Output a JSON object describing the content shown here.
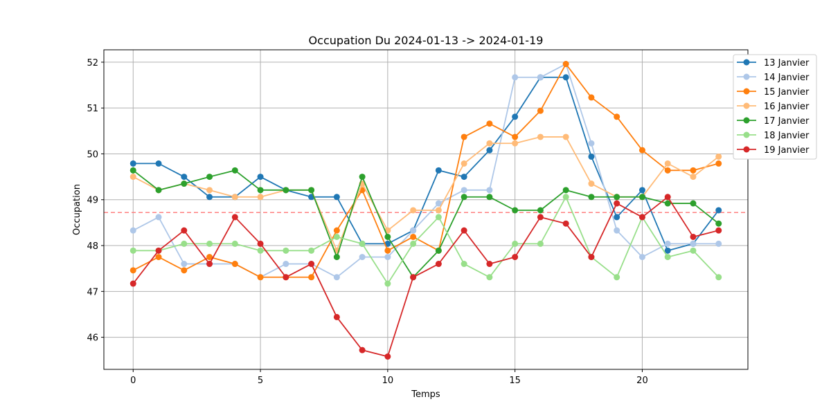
{
  "chart_data": {
    "type": "line",
    "title": "Occupation Du 2024-01-13 -> 2024-01-19",
    "xlabel": "Temps",
    "ylabel": "Occupation",
    "xlim": [
      -1.15,
      24.15
    ],
    "ylim": [
      45.3,
      52.27
    ],
    "x_ticks": [
      0,
      5,
      10,
      15,
      20
    ],
    "y_ticks": [
      46,
      47,
      48,
      49,
      50,
      51,
      52
    ],
    "grid": true,
    "legend_position": "upper right, outside",
    "x": [
      0,
      1,
      2,
      3,
      4,
      5,
      6,
      7,
      8,
      9,
      10,
      11,
      12,
      13,
      14,
      15,
      16,
      17,
      18,
      19,
      20,
      21,
      22,
      23
    ],
    "reference_line": {
      "y": 48.72,
      "color": "#ff7f7f",
      "style": "dashed"
    },
    "series": [
      {
        "name": "13 Janvier",
        "color": "#1f77b4",
        "values": [
          49.79,
          49.79,
          49.5,
          49.06,
          49.06,
          49.5,
          49.21,
          49.06,
          49.06,
          48.04,
          48.04,
          48.33,
          49.64,
          49.5,
          50.08,
          50.81,
          51.67,
          51.67,
          49.94,
          48.62,
          49.21,
          47.89,
          48.04,
          48.77
        ]
      },
      {
        "name": "14 Janvier",
        "color": "#aec7e8",
        "values": [
          48.33,
          48.62,
          47.6,
          47.6,
          47.6,
          47.31,
          47.6,
          47.6,
          47.31,
          47.75,
          47.75,
          48.33,
          48.92,
          49.21,
          49.21,
          51.67,
          51.67,
          51.96,
          50.23,
          48.33,
          47.75,
          48.04,
          48.04,
          48.04
        ]
      },
      {
        "name": "15 Janvier",
        "color": "#ff7f0e",
        "values": [
          47.46,
          47.75,
          47.46,
          47.75,
          47.6,
          47.31,
          47.31,
          47.31,
          48.33,
          49.21,
          47.89,
          48.19,
          47.89,
          50.37,
          50.66,
          50.37,
          50.94,
          51.96,
          51.23,
          50.81,
          50.08,
          49.64,
          49.64,
          49.79
        ]
      },
      {
        "name": "16 Janvier",
        "color": "#ffbb78",
        "values": [
          49.5,
          49.21,
          49.35,
          49.21,
          49.06,
          49.06,
          49.21,
          49.21,
          47.89,
          49.35,
          48.33,
          48.77,
          48.77,
          49.79,
          50.23,
          50.23,
          50.37,
          50.37,
          49.35,
          49.06,
          49.06,
          49.79,
          49.5,
          49.94
        ]
      },
      {
        "name": "17 Janvier",
        "color": "#2ca02c",
        "values": [
          49.64,
          49.21,
          49.35,
          49.5,
          49.64,
          49.21,
          49.21,
          49.21,
          47.75,
          49.5,
          48.19,
          47.31,
          47.89,
          49.06,
          49.06,
          48.77,
          48.77,
          49.21,
          49.06,
          49.06,
          49.06,
          48.92,
          48.92,
          48.48
        ]
      },
      {
        "name": "18 Janvier",
        "color": "#98df8a",
        "values": [
          47.89,
          47.89,
          48.04,
          48.04,
          48.04,
          47.89,
          47.89,
          47.89,
          48.19,
          48.04,
          47.17,
          48.04,
          48.62,
          47.6,
          47.31,
          48.04,
          48.04,
          49.06,
          47.75,
          47.31,
          48.62,
          47.75,
          47.89,
          47.31
        ]
      },
      {
        "name": "19 Janvier",
        "color": "#d62728",
        "values": [
          47.17,
          47.89,
          48.33,
          47.6,
          48.62,
          48.04,
          47.31,
          47.6,
          46.44,
          45.72,
          45.58,
          47.31,
          47.6,
          48.33,
          47.6,
          47.75,
          48.62,
          48.48,
          47.75,
          48.92,
          48.62,
          49.06,
          48.19,
          48.33
        ]
      }
    ]
  }
}
